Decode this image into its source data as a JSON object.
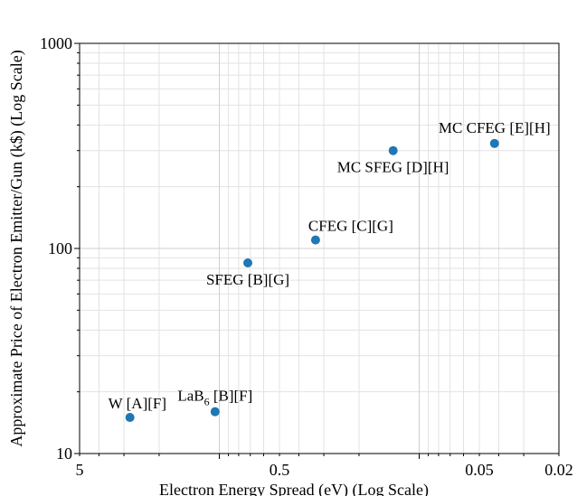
{
  "chart_data": {
    "type": "scatter",
    "xlabel": "Electron Energy Spread (eV) (Log Scale)",
    "ylabel": "Approximate Price of Electron Emitter/Gun (k$) (Log Scale)",
    "x_scale": "log",
    "x_reversed": true,
    "y_scale": "log",
    "xlim": [
      5,
      0.02
    ],
    "ylim": [
      10,
      1000
    ],
    "x_ticks": [
      {
        "value": 5,
        "label": "5"
      },
      {
        "value": 0.5,
        "label": "0.5"
      },
      {
        "value": 0.05,
        "label": "0.05"
      },
      {
        "value": 0.02,
        "label": "0.02"
      }
    ],
    "y_ticks": [
      {
        "value": 10,
        "label": "10"
      },
      {
        "value": 100,
        "label": "100"
      },
      {
        "value": 1000,
        "label": "1000"
      }
    ],
    "grid": true,
    "marker_color": "#1f77b4",
    "points": [
      {
        "x": 2.8,
        "y": 15,
        "label": "W [A][F]",
        "label_pos": "above-left"
      },
      {
        "x": 1.05,
        "y": 16,
        "label": "LaB",
        "label_sub": "6",
        "label_suffix": " [B][F]",
        "label_pos": "above"
      },
      {
        "x": 0.72,
        "y": 85,
        "label": "SFEG [B][G]",
        "label_pos": "below"
      },
      {
        "x": 0.33,
        "y": 110,
        "label": "CFEG [C][G]",
        "label_pos": "above-right"
      },
      {
        "x": 0.135,
        "y": 300,
        "label": "MC SFEG [D][H]",
        "label_pos": "below-left"
      },
      {
        "x": 0.042,
        "y": 325,
        "label": "MC CFEG [E][H]",
        "label_pos": "above"
      }
    ]
  }
}
